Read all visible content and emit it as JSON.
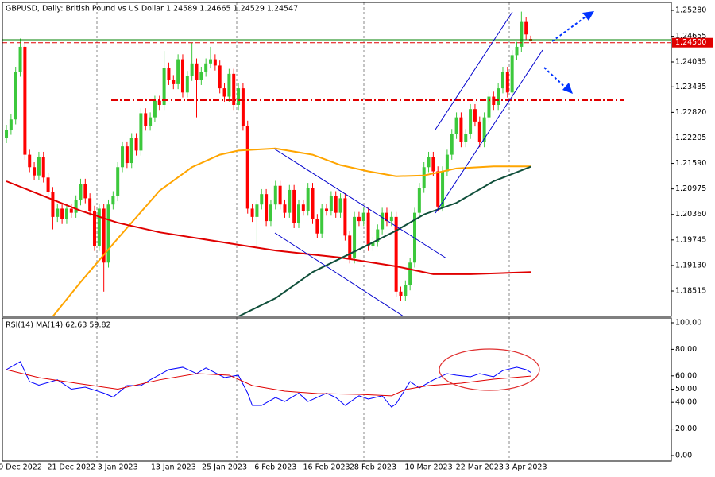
{
  "chart_data": [
    {
      "type": "candlestick",
      "title": "GBPUSD, Daily:  British Pound vs US Dollar  1.24589 1.24665 1.24529 1.24547",
      "categories": [
        null,
        null,
        null,
        "9 Dec 2022",
        null,
        null,
        null,
        null,
        null,
        null,
        null,
        null,
        null,
        null,
        "21 Dec 2022",
        null,
        null,
        null,
        null,
        null,
        null,
        null,
        null,
        null,
        "3 Jan 2023",
        null,
        null,
        null,
        null,
        null,
        null,
        null,
        null,
        null,
        null,
        null,
        "13 Jan 2023",
        null,
        null,
        null,
        null,
        null,
        null,
        null,
        null,
        null,
        null,
        "25 Jan 2023",
        null,
        null,
        null,
        null,
        null,
        null,
        null,
        null,
        null,
        null,
        "6 Feb 2023",
        null,
        null,
        null,
        null,
        null,
        null,
        null,
        null,
        null,
        null,
        "16 Feb 2023",
        null,
        null,
        null,
        null,
        null,
        null,
        null,
        null,
        null,
        "28 Feb 2023",
        null,
        null,
        null,
        null,
        null,
        null,
        null,
        null,
        null,
        null,
        null,
        "10 Mar 2023",
        null,
        null,
        null,
        null,
        null,
        null,
        null,
        null,
        null,
        null,
        "22 Mar 2023",
        null,
        null,
        null,
        null,
        null,
        null,
        null,
        null,
        null,
        "3 Apr 2023",
        null
      ],
      "open": [
        1.222,
        1.224,
        1.2265,
        1.238,
        1.244,
        1.218,
        1.215,
        1.213,
        1.2175,
        1.2125,
        1.209,
        1.203,
        1.205,
        1.2025,
        1.205,
        1.204,
        1.207,
        1.211,
        1.2075,
        1.2045,
        1.196,
        1.205,
        1.192,
        1.206,
        1.208,
        1.215,
        1.22,
        1.216,
        1.222,
        1.219,
        1.228,
        1.225,
        1.227,
        1.231,
        1.23,
        1.239,
        1.236,
        1.235,
        1.241,
        1.233,
        1.237,
        1.24,
        1.236,
        1.238,
        1.24,
        1.241,
        1.2395,
        1.234,
        1.232,
        1.2375,
        1.23,
        1.234,
        1.225,
        1.205,
        1.203,
        1.206,
        1.2085,
        1.202,
        1.206,
        1.2105,
        1.206,
        1.204,
        1.2095,
        1.2015,
        1.206,
        1.2045,
        1.21,
        1.2025,
        1.199,
        1.205,
        1.2045,
        1.208,
        1.204,
        1.2075,
        1.1985,
        1.193,
        1.203,
        1.202,
        1.204,
        1.196,
        1.197,
        1.2,
        1.204,
        1.202,
        1.203,
        1.185,
        1.184,
        1.1865,
        1.192,
        1.204,
        1.21,
        1.215,
        1.2175,
        1.214,
        1.2055,
        1.214,
        1.218,
        1.223,
        1.227,
        1.221,
        1.223,
        1.229,
        1.226,
        1.221,
        1.227,
        1.232,
        1.23,
        1.234,
        1.238,
        1.233,
        1.242,
        1.244,
        1.25,
        1.2459
      ],
      "high": [
        1.2252,
        1.2277,
        1.2392,
        1.246,
        1.2452,
        1.2192,
        1.2162,
        1.2187,
        1.2187,
        1.2137,
        1.2102,
        1.2062,
        1.2062,
        1.2062,
        1.2062,
        1.2082,
        1.2122,
        1.2122,
        1.2087,
        1.2057,
        1.2062,
        1.2062,
        1.2072,
        1.2092,
        1.2162,
        1.2212,
        1.2212,
        1.2232,
        1.2232,
        1.2292,
        1.2292,
        1.2282,
        1.2322,
        1.2322,
        1.243,
        1.2402,
        1.2372,
        1.2422,
        1.2422,
        1.2382,
        1.245,
        1.2412,
        1.2392,
        1.2412,
        1.244,
        1.2422,
        1.2407,
        1.2352,
        1.2387,
        1.2387,
        1.2352,
        1.2352,
        1.2262,
        1.2062,
        1.2072,
        1.2097,
        1.2097,
        1.2072,
        1.2117,
        1.2117,
        1.2072,
        1.2107,
        1.2107,
        1.2072,
        1.2072,
        1.2112,
        1.2112,
        1.2037,
        1.2062,
        1.2062,
        1.2092,
        1.2092,
        1.2087,
        1.2087,
        1.1997,
        1.2042,
        1.2042,
        1.2052,
        1.2052,
        1.1982,
        1.2012,
        1.2052,
        1.2052,
        1.2042,
        1.2042,
        1.1862,
        1.1877,
        1.1932,
        1.2052,
        1.2112,
        1.2162,
        1.2187,
        1.2187,
        1.2152,
        1.2152,
        1.2192,
        1.2242,
        1.2282,
        1.2282,
        1.2242,
        1.2302,
        1.2302,
        1.2272,
        1.2282,
        1.2332,
        1.2332,
        1.2352,
        1.2392,
        1.2392,
        1.2432,
        1.2452,
        1.2525,
        1.2512,
        1.2467
      ],
      "low": [
        1.2208,
        1.2228,
        1.2253,
        1.2368,
        1.2168,
        1.2138,
        1.2118,
        1.2118,
        1.2113,
        1.2078,
        1.2,
        1.2018,
        1.2013,
        1.2013,
        1.2028,
        1.2028,
        1.2058,
        1.2063,
        1.2033,
        1.1948,
        1.1948,
        1.185,
        1.1908,
        1.2048,
        1.2068,
        1.2138,
        1.2148,
        1.2148,
        1.2178,
        1.2178,
        1.2238,
        1.2238,
        1.2258,
        1.2288,
        1.2288,
        1.2348,
        1.2338,
        1.2338,
        1.2318,
        1.2318,
        1.2358,
        1.227,
        1.2348,
        1.2368,
        1.2388,
        1.2383,
        1.2328,
        1.2308,
        1.2308,
        1.2288,
        1.2288,
        1.2238,
        1.2038,
        1.2018,
        1.196,
        1.2048,
        1.2008,
        1.2008,
        1.2048,
        1.2048,
        1.2028,
        1.2028,
        1.2003,
        1.2003,
        1.2033,
        1.2033,
        1.2013,
        1.1978,
        1.1978,
        1.2033,
        1.2033,
        1.2028,
        1.2028,
        1.1973,
        1.1918,
        1.1918,
        1.2008,
        1.2008,
        1.1948,
        1.1948,
        1.1958,
        1.1988,
        1.2008,
        1.2008,
        1.1838,
        1.1828,
        1.1828,
        1.1853,
        1.1908,
        1.2028,
        1.2088,
        1.2138,
        1.2128,
        1.2043,
        1.2043,
        1.2128,
        1.2168,
        1.2218,
        1.2198,
        1.2198,
        1.2218,
        1.2248,
        1.2198,
        1.2198,
        1.2258,
        1.2288,
        1.2288,
        1.2328,
        1.2318,
        1.2318,
        1.2408,
        1.2428,
        1.2458,
        1.2453
      ],
      "close": [
        1.224,
        1.2265,
        1.238,
        1.244,
        1.218,
        1.215,
        1.213,
        1.2175,
        1.2125,
        1.209,
        1.203,
        1.205,
        1.2025,
        1.205,
        1.204,
        1.207,
        1.211,
        1.2075,
        1.2045,
        1.196,
        1.205,
        1.192,
        1.206,
        1.208,
        1.215,
        1.22,
        1.216,
        1.222,
        1.219,
        1.228,
        1.225,
        1.227,
        1.231,
        1.23,
        1.239,
        1.236,
        1.235,
        1.241,
        1.233,
        1.237,
        1.24,
        1.236,
        1.238,
        1.24,
        1.241,
        1.2395,
        1.234,
        1.232,
        1.2375,
        1.23,
        1.234,
        1.225,
        1.205,
        1.203,
        1.206,
        1.2085,
        1.202,
        1.206,
        1.2105,
        1.206,
        1.204,
        1.2095,
        1.2015,
        1.206,
        1.2045,
        1.21,
        1.2025,
        1.199,
        1.205,
        1.2045,
        1.208,
        1.204,
        1.2075,
        1.1985,
        1.193,
        1.203,
        1.202,
        1.204,
        1.196,
        1.197,
        1.2,
        1.204,
        1.202,
        1.203,
        1.185,
        1.184,
        1.1865,
        1.192,
        1.204,
        1.21,
        1.215,
        1.2175,
        1.214,
        1.2055,
        1.214,
        1.218,
        1.223,
        1.227,
        1.221,
        1.223,
        1.229,
        1.226,
        1.221,
        1.227,
        1.232,
        1.23,
        1.234,
        1.238,
        1.233,
        1.242,
        1.244,
        1.25,
        1.247,
        1.2455
      ],
      "up_color": "#3cc83c",
      "down_color": "#ff0000",
      "overlays": [
        {
          "color": "#ffa500",
          "x": [
            10,
            16,
            24,
            33,
            40,
            46,
            50,
            58,
            66,
            72,
            78,
            84,
            90,
            97,
            105,
            113
          ],
          "values": [
            1.179,
            1.1873,
            1.1978,
            1.2093,
            1.215,
            1.218,
            1.219,
            1.2195,
            1.218,
            1.2155,
            1.214,
            1.2128,
            1.213,
            1.2147,
            1.2152,
            1.2152
          ]
        },
        {
          "color": "#e00000",
          "x": [
            0,
            16,
            24,
            33,
            50,
            58,
            72,
            84,
            92,
            100,
            113
          ],
          "values": [
            1.2116,
            1.2045,
            1.2016,
            1.1993,
            1.1963,
            1.1949,
            1.1932,
            1.1911,
            1.1892,
            1.1892,
            1.1897
          ]
        },
        {
          "color": "#0f4f3a",
          "x": [
            50,
            58,
            66,
            72,
            78,
            84,
            90,
            97,
            105,
            113
          ],
          "values": [
            1.179,
            1.1834,
            1.1897,
            1.193,
            1.1963,
            1.1997,
            1.2036,
            1.2064,
            1.2116,
            1.2151
          ]
        }
      ],
      "current_price": {
        "value": 1.245,
        "label": "1.24500"
      },
      "xlim": [
        -0.86,
        143.3
      ],
      "ylim": [
        1.17902,
        1.25472
      ],
      "yticks": [
        {
          "value": 1.2528,
          "label": "1.25280"
        },
        {
          "value": 1.24655,
          "label": "1.24655"
        },
        {
          "value": 1.24035,
          "label": "1.24035"
        },
        {
          "value": 1.23435,
          "label": "1.23435"
        },
        {
          "value": 1.2282,
          "label": "1.22820"
        },
        {
          "value": 1.22205,
          "label": "1.22205"
        },
        {
          "value": 1.2159,
          "label": "1.21590"
        },
        {
          "value": 1.20975,
          "label": "1.20975"
        },
        {
          "value": 1.2036,
          "label": "1.20360"
        },
        {
          "value": 1.19745,
          "label": "1.19745"
        },
        {
          "value": 1.1913,
          "label": "1.19130"
        },
        {
          "value": 1.18515,
          "label": "1.18515"
        }
      ]
    },
    {
      "type": "line",
      "title": "RSI(14) MA(14) 62.63 59.82",
      "series": [
        {
          "color": "#0000ff",
          "x": [
            0,
            3,
            5,
            7,
            11,
            14,
            17,
            21,
            23,
            26,
            29,
            31,
            35,
            38,
            41,
            43,
            47,
            50,
            52,
            53,
            55,
            58,
            60,
            63,
            65,
            69,
            71,
            73,
            76,
            78,
            81,
            83,
            84,
            87,
            89,
            92,
            95,
            97,
            100,
            102,
            105,
            107,
            110,
            112,
            113
          ],
          "values": [
            64.7,
            70.7,
            55.7,
            53,
            57,
            50,
            51.5,
            47,
            44,
            52.7,
            52.7,
            57,
            64.7,
            66.5,
            61.7,
            66,
            58.7,
            60.5,
            47,
            37.7,
            37.7,
            43.7,
            40.7,
            47,
            40.7,
            47,
            43.7,
            37.7,
            45,
            42.5,
            45,
            36.5,
            39,
            55.7,
            50.9,
            56.9,
            61.7,
            60.5,
            59.3,
            61.7,
            59.3,
            64,
            66.5,
            64.7,
            62.63
          ]
        },
        {
          "color": "#e00000",
          "x": [
            0,
            7,
            16,
            24,
            33,
            41,
            48,
            53,
            60,
            67,
            76,
            83,
            86,
            91,
            98,
            105,
            113
          ],
          "values": [
            64.7,
            58.7,
            54,
            50,
            57,
            61.7,
            60.5,
            52.7,
            48.5,
            46.7,
            46.1,
            45,
            49.7,
            52.7,
            54.5,
            57.5,
            59.82
          ]
        }
      ],
      "xlim": [
        -0.86,
        143.3
      ],
      "ylim": [
        -4.2,
        103.6
      ],
      "yticks": [
        {
          "value": 100,
          "label": "100.00"
        },
        {
          "value": 80,
          "label": "80.00"
        },
        {
          "value": 60,
          "label": "60.00"
        },
        {
          "value": 50,
          "label": "50.00"
        },
        {
          "value": 40,
          "label": "40.00"
        },
        {
          "value": 20,
          "label": "20.00"
        },
        {
          "value": 0,
          "label": "0.00"
        }
      ]
    }
  ]
}
